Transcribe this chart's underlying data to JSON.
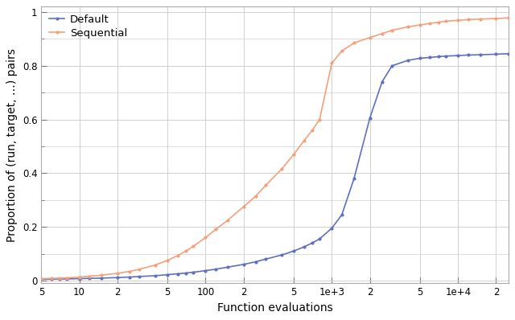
{
  "title": "",
  "xlabel": "Function evaluations",
  "ylabel": "Proportion of (run, target, …) pairs",
  "xlim_log": [
    5,
    25000
  ],
  "ylim": [
    -0.01,
    1.02
  ],
  "default_color": "#6070C0",
  "sequential_color": "#F5A07A",
  "default_x": [
    5,
    6,
    7,
    8,
    10,
    12,
    15,
    20,
    25,
    30,
    40,
    50,
    60,
    70,
    80,
    100,
    120,
    150,
    200,
    250,
    300,
    400,
    500,
    600,
    700,
    800,
    1000,
    1200,
    1500,
    2000,
    2500,
    3000,
    4000,
    5000,
    6000,
    7000,
    8000,
    10000,
    12000,
    15000,
    20000,
    25000
  ],
  "default_y": [
    0.005,
    0.005,
    0.006,
    0.006,
    0.007,
    0.008,
    0.009,
    0.011,
    0.013,
    0.015,
    0.018,
    0.022,
    0.025,
    0.028,
    0.031,
    0.037,
    0.042,
    0.05,
    0.06,
    0.07,
    0.08,
    0.095,
    0.11,
    0.125,
    0.14,
    0.155,
    0.195,
    0.245,
    0.38,
    0.605,
    0.74,
    0.8,
    0.82,
    0.828,
    0.831,
    0.834,
    0.836,
    0.838,
    0.84,
    0.841,
    0.843,
    0.845
  ],
  "sequential_x": [
    5,
    6,
    7,
    8,
    10,
    12,
    15,
    20,
    25,
    30,
    40,
    50,
    60,
    70,
    80,
    100,
    120,
    150,
    200,
    250,
    300,
    400,
    500,
    600,
    700,
    800,
    1000,
    1200,
    1500,
    2000,
    2500,
    3000,
    4000,
    5000,
    6000,
    7000,
    8000,
    10000,
    12000,
    15000,
    20000,
    25000
  ],
  "sequential_y": [
    0.007,
    0.008,
    0.009,
    0.01,
    0.013,
    0.016,
    0.02,
    0.027,
    0.034,
    0.042,
    0.058,
    0.075,
    0.093,
    0.11,
    0.128,
    0.16,
    0.19,
    0.225,
    0.275,
    0.315,
    0.355,
    0.415,
    0.47,
    0.52,
    0.56,
    0.6,
    0.81,
    0.855,
    0.885,
    0.905,
    0.92,
    0.932,
    0.945,
    0.952,
    0.958,
    0.962,
    0.966,
    0.969,
    0.972,
    0.974,
    0.976,
    0.978
  ],
  "legend_labels": [
    "Default",
    "Sequential"
  ],
  "grid_color": "#d0d0d0",
  "background_color": "#ffffff",
  "tick_label_fontsize": 8.5,
  "axis_label_fontsize": 10,
  "legend_fontsize": 9.5,
  "marker_size": 3,
  "line_width": 1.2,
  "custom_tick_positions": [
    5,
    10,
    20,
    50,
    100,
    200,
    500,
    1000,
    2000,
    5000,
    10000,
    20000
  ],
  "custom_tick_labels": [
    "5",
    "10",
    "2",
    "5",
    "100",
    "2",
    "5",
    "1e+3",
    "2",
    "5",
    "1e+4",
    "2"
  ]
}
